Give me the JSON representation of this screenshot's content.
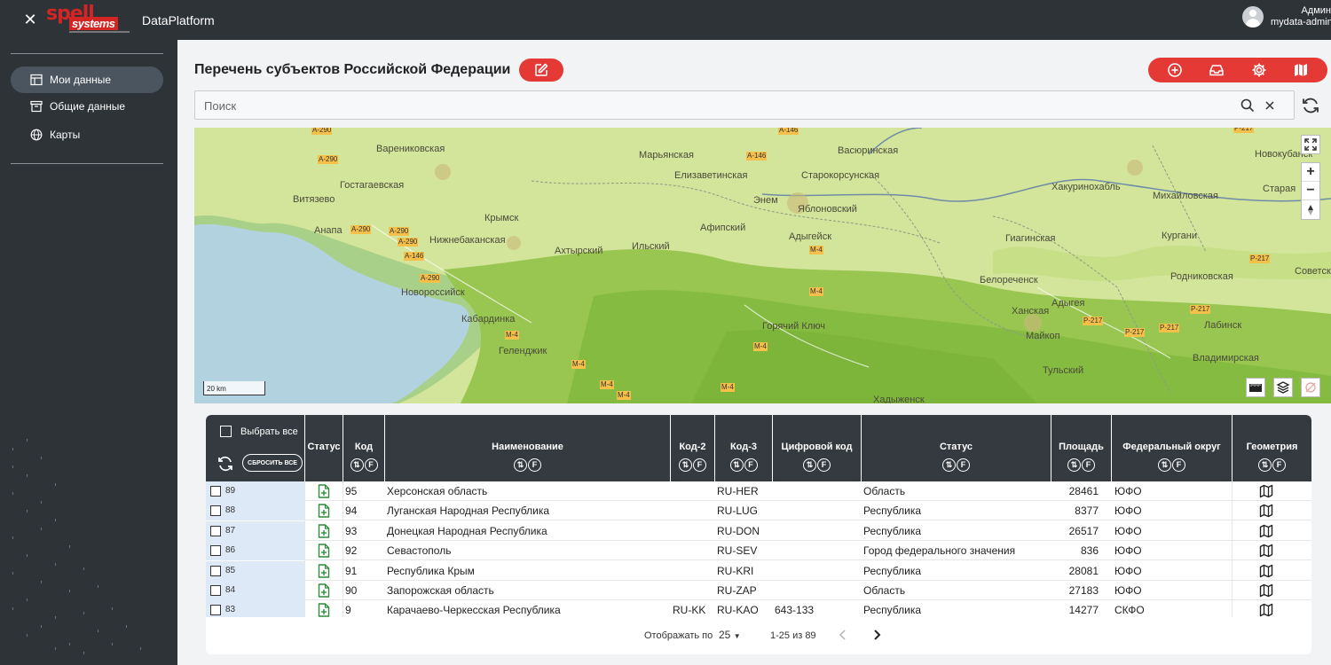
{
  "app": {
    "title": "DataPlatform",
    "logo_top": "spell",
    "logo_bottom": "systems",
    "user_name": "Админ",
    "user_login": "mydata-admin"
  },
  "sidebar": {
    "items": [
      {
        "label": "Мои данные",
        "icon": "table-icon",
        "active": true
      },
      {
        "label": "Общие данные",
        "icon": "archive-icon",
        "active": false
      },
      {
        "label": "Карты",
        "icon": "globe-icon",
        "active": false
      }
    ]
  },
  "page": {
    "title": "Перечень субъектов Российской Федерации"
  },
  "search": {
    "placeholder": "Поиск",
    "value": ""
  },
  "map": {
    "scale_label": "20 km",
    "places": [
      "Варениковская",
      "Гостагаевская",
      "Витязево",
      "Анапа",
      "Крымск",
      "Нижнебаканская",
      "Ахтырский",
      "Ильский",
      "Новороссийск",
      "Кабардинка",
      "Геленджик",
      "Марьянская",
      "Елизаветинская",
      "Старокорсунская",
      "Васюринская",
      "Гиагинская",
      "Энем",
      "Яблоновский",
      "Афипский",
      "Адыгейск",
      "Горячий Ключ",
      "Белореченск",
      "Ханская",
      "Майкоп",
      "Адыгея",
      "Тульский",
      "Хакуринохабль",
      "Михайловская",
      "Кургани",
      "Родниковская",
      "Лабинск",
      "Владимирская",
      "Новокубанск",
      "Старая",
      "Советская",
      "Хадыженск"
    ],
    "roads": [
      "A-290",
      "A-146",
      "M-4",
      "P-217"
    ]
  },
  "table": {
    "select_all_label": "Выбрать все",
    "reset_all_label": "СБРОСИТЬ ВСЕ",
    "columns": [
      "Статус",
      "Код",
      "Наименование",
      "Код-2",
      "Код-3",
      "Цифровой код",
      "Статус",
      "Площадь",
      "Федеральный округ",
      "Геометрия"
    ],
    "sort_glyph": "⇅",
    "filter_glyph": "F",
    "rows": [
      {
        "id": "89",
        "code": "95",
        "name": "Херсонская область",
        "code2": "",
        "code3": "RU-HER",
        "digital": "",
        "status": "Область",
        "area": "28461",
        "district": "ЮФО"
      },
      {
        "id": "88",
        "code": "94",
        "name": "Луганская Народная Республика",
        "code2": "",
        "code3": "RU-LUG",
        "digital": "",
        "status": "Республика",
        "area": "8377",
        "district": "ЮФО"
      },
      {
        "id": "87",
        "code": "93",
        "name": "Донецкая Народная Республика",
        "code2": "",
        "code3": "RU-DON",
        "digital": "",
        "status": "Республика",
        "area": "26517",
        "district": "ЮФО"
      },
      {
        "id": "86",
        "code": "92",
        "name": "Севастополь",
        "code2": "",
        "code3": "RU-SEV",
        "digital": "",
        "status": "Город федерального значения",
        "area": "836",
        "district": "ЮФО"
      },
      {
        "id": "85",
        "code": "91",
        "name": "Республика Крым",
        "code2": "",
        "code3": "RU-KRI",
        "digital": "",
        "status": "Республика",
        "area": "28081",
        "district": "ЮФО"
      },
      {
        "id": "84",
        "code": "90",
        "name": "Запорожская область",
        "code2": "",
        "code3": "RU-ZAP",
        "digital": "",
        "status": "Область",
        "area": "27183",
        "district": "ЮФО"
      },
      {
        "id": "83",
        "code": "9",
        "name": "Карачаево-Черкесская Республика",
        "code2": "RU-KK",
        "code3": "RU-KAO",
        "digital": "643-133",
        "status": "Республика",
        "area": "14277",
        "district": "СКФО"
      }
    ]
  },
  "pagination": {
    "page_size_label": "Отображать по",
    "page_size": "25",
    "range": "1-25 из 89"
  },
  "colors": {
    "accent": "#e53935",
    "dark": "#2e3338",
    "header": "#343a40",
    "selection": "#dde9f6"
  }
}
